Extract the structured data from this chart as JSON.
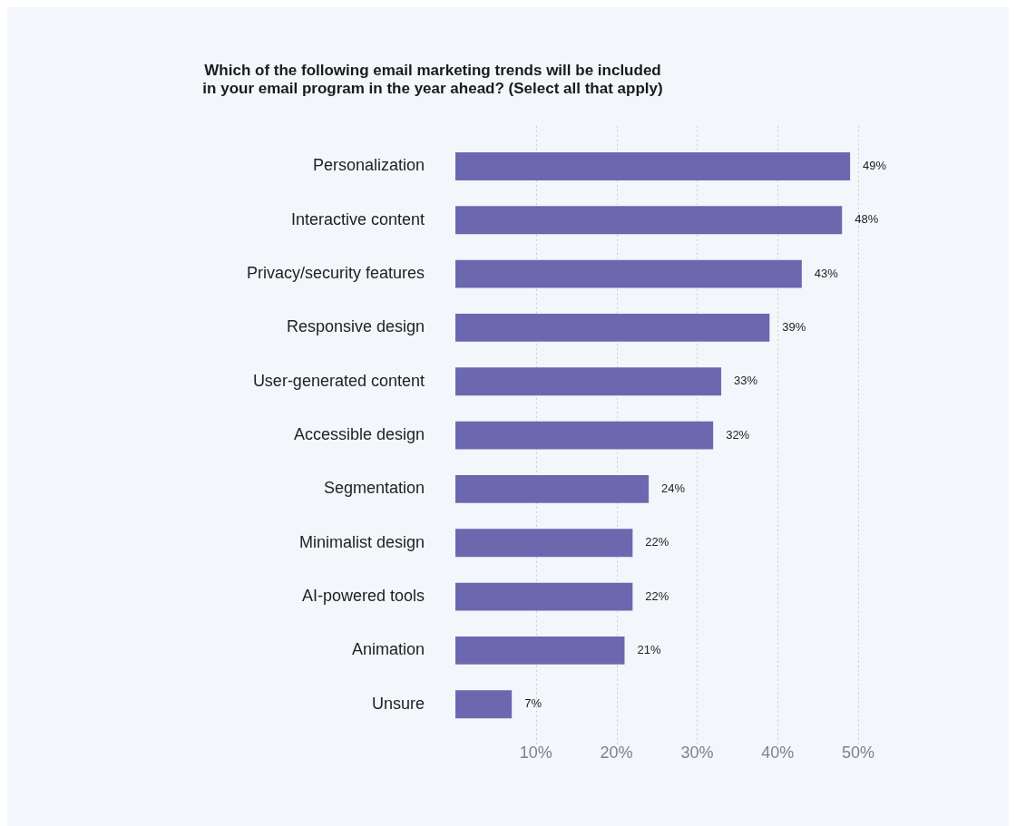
{
  "chart_data": {
    "type": "bar",
    "orientation": "horizontal",
    "title": "Which of the following email marketing trends will be included\nin your email program in the year ahead? (Select all that apply)",
    "categories": [
      "Personalization",
      "Interactive content",
      "Privacy/security features",
      "Responsive design",
      "User-generated content",
      "Accessible design",
      "Segmentation",
      "Minimalist design",
      "AI-powered tools",
      "Animation",
      "Unsure"
    ],
    "values": [
      49,
      48,
      43,
      39,
      33,
      32,
      24,
      22,
      22,
      21,
      7
    ],
    "value_labels": [
      "49%",
      "48%",
      "43%",
      "39%",
      "33%",
      "32%",
      "24%",
      "22%",
      "22%",
      "21%",
      "7%"
    ],
    "color": "#6b68b0",
    "xlim": [
      0,
      50
    ],
    "xticks": [
      {
        "value": 10,
        "label": "10%"
      },
      {
        "value": 20,
        "label": "20%"
      },
      {
        "value": 30,
        "label": "30%"
      },
      {
        "value": 40,
        "label": "40%"
      },
      {
        "value": 50,
        "label": "50%"
      }
    ],
    "grid": "x",
    "legend": false
  }
}
